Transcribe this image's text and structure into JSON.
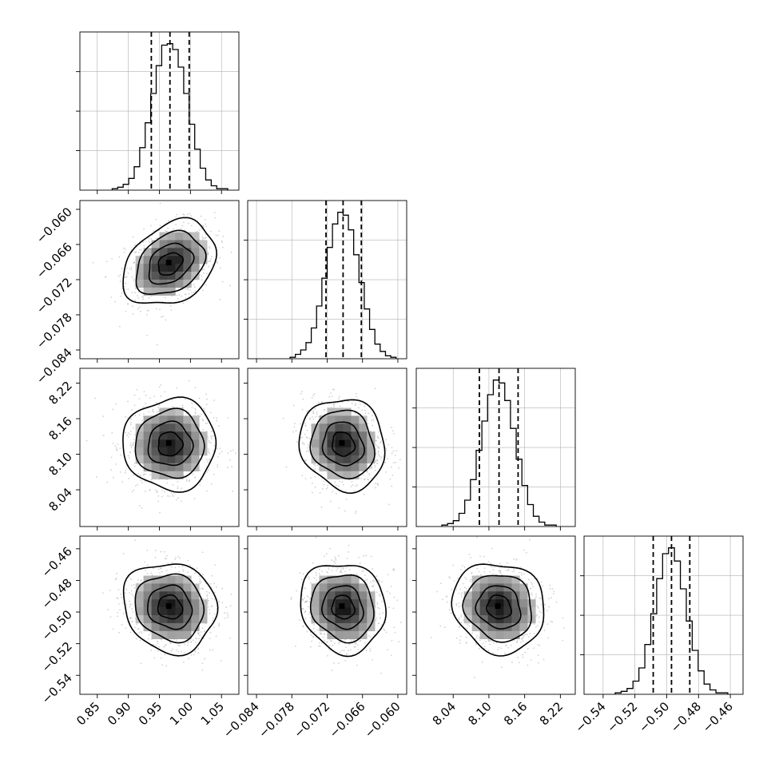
{
  "chart_data": {
    "type": "corner",
    "parameters": [
      {
        "range": [
          0.822,
          1.078
        ],
        "ticks": [
          "0.85",
          "0.90",
          "0.95",
          "1.00",
          "1.05"
        ],
        "tick_values": [
          0.85,
          0.9,
          0.95,
          1.0,
          1.05
        ],
        "quantiles": [
          0.937,
          0.967,
          0.998
        ],
        "peak": 0.967,
        "sigma": 0.031,
        "hist_counts": [
          1,
          2,
          4,
          8,
          16,
          29,
          46,
          66,
          85,
          99,
          100,
          96,
          84,
          66,
          45,
          28,
          15,
          7,
          3,
          1,
          1
        ]
      },
      {
        "range": [
          -0.0855,
          -0.0585
        ],
        "ticks": [
          "−0.084",
          "−0.078",
          "−0.072",
          "−0.066",
          "−0.060"
        ],
        "tick_values": [
          -0.084,
          -0.078,
          -0.072,
          -0.066,
          -0.06
        ],
        "quantiles": [
          -0.0722,
          -0.0693,
          -0.0662
        ],
        "peak": -0.0693,
        "sigma": 0.003,
        "hist_counts": [
          1,
          3,
          6,
          11,
          21,
          36,
          55,
          76,
          92,
          100,
          98,
          88,
          71,
          52,
          34,
          20,
          10,
          5,
          2,
          1
        ]
      },
      {
        "range": [
          7.978,
          8.245
        ],
        "ticks": [
          "8.04",
          "8.10",
          "8.16",
          "8.22"
        ],
        "tick_values": [
          8.04,
          8.1,
          8.16,
          8.22
        ],
        "quantiles": [
          8.084,
          8.117,
          8.149
        ],
        "peak": 8.117,
        "sigma": 0.032,
        "hist_counts": [
          1,
          2,
          4,
          9,
          18,
          32,
          52,
          72,
          90,
          100,
          98,
          86,
          67,
          46,
          28,
          15,
          7,
          3,
          1,
          1
        ]
      },
      {
        "range": [
          -0.552,
          -0.452
        ],
        "ticks": [
          "−0.54",
          "−0.52",
          "−0.50",
          "−0.48",
          "−0.46"
        ],
        "tick_values": [
          -0.54,
          -0.52,
          -0.5,
          -0.48,
          -0.46
        ],
        "quantiles": [
          -0.5085,
          -0.497,
          -0.4855
        ],
        "peak": -0.497,
        "sigma": 0.0118,
        "hist_counts": [
          1,
          2,
          4,
          9,
          18,
          34,
          55,
          79,
          96,
          100,
          91,
          72,
          50,
          30,
          16,
          7,
          3,
          1,
          1
        ]
      }
    ],
    "contour_levels": [
      "0.5-sigma",
      "1-sigma",
      "1.5-sigma",
      "2-sigma"
    ],
    "colors": {
      "line": "#000000",
      "grid": "#b0b0b0",
      "points": "#bdbdbd",
      "density": "#000000"
    },
    "grid": true,
    "legend": "none"
  }
}
